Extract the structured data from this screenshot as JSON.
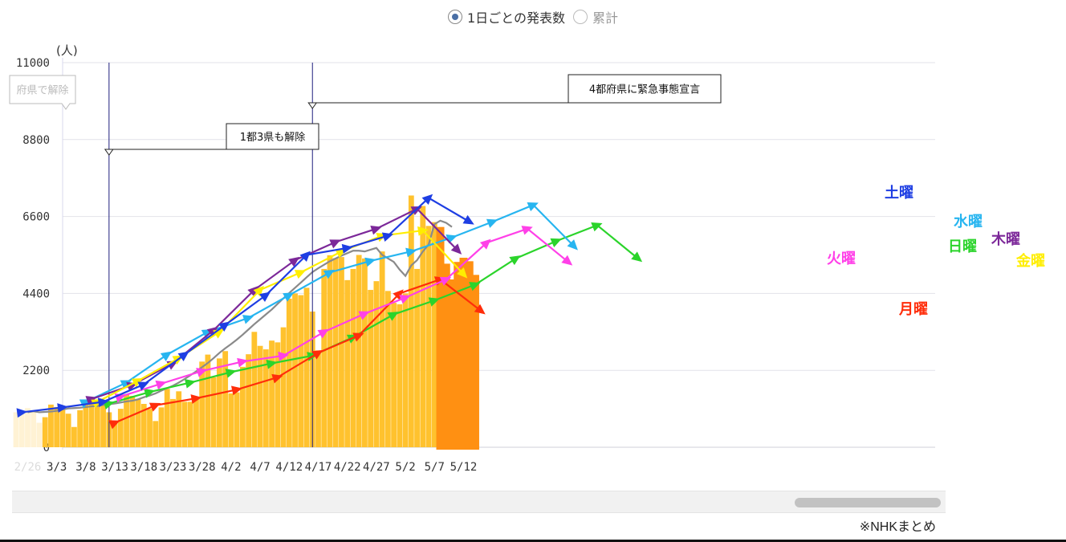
{
  "toggle": {
    "daily_label": "1日ごとの発表数",
    "cumulative_label": "累計",
    "selected": "daily"
  },
  "source_note": "※NHKまとめ",
  "chart_data": {
    "type": "bar",
    "yunit": "(人)",
    "ylim": [
      0,
      11000
    ],
    "yticks": [
      "0",
      "2200",
      "4400",
      "6600",
      "8800",
      "11000"
    ],
    "x_tick_labels": [
      "2/26",
      "3/3",
      "3/8",
      "3/13",
      "3/18",
      "3/23",
      "3/28",
      "4/2",
      "4/7",
      "4/12",
      "4/17",
      "4/22",
      "4/27",
      "5/2",
      "5/7",
      "5/12"
    ],
    "grid": true,
    "bar_color": "#FFC22E",
    "recent_bar_color": "#FF9012",
    "faded_bar_color": "#FFF2D4",
    "daily_values": [
      1000,
      1050,
      1120,
      1000,
      700,
      860,
      1220,
      1150,
      1080,
      960,
      580,
      1060,
      1300,
      1310,
      1230,
      1300,
      1000,
      700,
      1100,
      1520,
      1470,
      1380,
      1240,
      1100,
      750,
      1140,
      1670,
      1380,
      1600,
      1300,
      1300,
      1390,
      2450,
      2650,
      2000,
      2540,
      2750,
      1540,
      1570,
      2300,
      2660,
      3300,
      2900,
      2800,
      3050,
      3000,
      3430,
      4250,
      4400,
      4350,
      4560,
      3880,
      2770,
      5100,
      5490,
      5410,
      5440,
      4780,
      5100,
      5500,
      5400,
      4500,
      4750,
      5600,
      4470,
      4130,
      4090,
      4400,
      7200,
      5100,
      6900,
      6330,
      6440,
      6300,
      5250,
      4800,
      5300,
      5420,
      5320,
      4930
    ],
    "recent_count": 7,
    "faded_count": 5,
    "series": [
      {
        "name": "日曜",
        "color": "#2bd42b",
        "values": [
          1250,
          1580,
          1850,
          2150,
          2400,
          2620,
          3150,
          3800,
          4200,
          4650,
          5400,
          5900,
          6350,
          5400
        ]
      },
      {
        "name": "月曜",
        "color": "#ff2d0a",
        "values": [
          700,
          1200,
          1400,
          1650,
          2000,
          2700,
          3200,
          4400,
          4800,
          3900
        ]
      },
      {
        "name": "火曜",
        "color": "#ff40e8",
        "values": [
          1450,
          1820,
          2180,
          2450,
          2620,
          3300,
          3820,
          4280,
          4800,
          5850,
          6250,
          5300
        ]
      },
      {
        "name": "水曜",
        "color": "#27b5f0",
        "values": [
          1300,
          1850,
          2650,
          3300,
          3700,
          4350,
          5000,
          5330,
          5600,
          6000,
          6450,
          6930,
          5750
        ]
      },
      {
        "name": "木曜",
        "color": "#7c2899",
        "values": [
          1380,
          1780,
          2400,
          3350,
          4500,
          5350,
          5870,
          6250,
          6820,
          5630
        ]
      },
      {
        "name": "金曜",
        "color": "#ffee00",
        "values": [
          1300,
          1900,
          2550,
          3300,
          4500,
          5000,
          5600,
          6050,
          6200,
          4950
        ]
      },
      {
        "name": "土曜",
        "color": "#1e3ee3",
        "values": [
          1000,
          1140,
          1300,
          1800,
          2650,
          3500,
          4350,
          5500,
          5700,
          6050,
          7130,
          6450
        ]
      }
    ],
    "seven_day_average": [
      1000,
      1030,
      1000,
      1010,
      1020,
      1040,
      1080,
      1110,
      1120,
      1130,
      1150,
      1170,
      1180,
      1210,
      1230,
      1250,
      1280,
      1310,
      1330,
      1370,
      1430,
      1480,
      1540,
      1620,
      1690,
      1760,
      1850,
      1950,
      2060,
      2170,
      2290,
      2410,
      2550,
      2700,
      2830,
      2950,
      3080,
      3220,
      3370,
      3520,
      3660,
      3800,
      3940,
      4100,
      4260,
      4410,
      4560,
      4710,
      4860,
      5010,
      5120,
      5220,
      5320,
      5400,
      5480,
      5550,
      5620,
      5620,
      5600,
      5650,
      5700,
      5500,
      5400,
      5300,
      5080,
      4900,
      5200,
      5350,
      5600,
      5800,
      6380,
      6480,
      6420,
      6300
    ],
    "annotations": [
      {
        "text": "1都3県も解除",
        "date": "3/21"
      },
      {
        "text": "4都府県に緊急事態宣言",
        "date": "4/25"
      },
      {
        "text": "府県で解除",
        "date": "2/28"
      }
    ]
  }
}
